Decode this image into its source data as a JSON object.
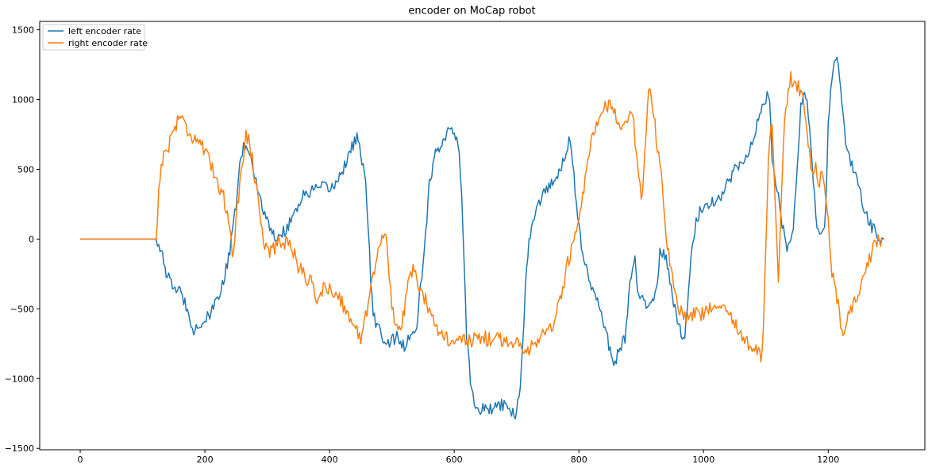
{
  "chart_data": {
    "type": "line",
    "title": "encoder on MoCap robot",
    "xlabel": "",
    "ylabel": "",
    "xlim": [
      -65,
      1355
    ],
    "ylim": [
      -1510,
      1560
    ],
    "xticks": [
      0,
      200,
      400,
      600,
      800,
      1000,
      1200
    ],
    "yticks": [
      -1500,
      -1000,
      -500,
      0,
      500,
      1000,
      1500
    ],
    "xtick_labels": [
      "0",
      "200",
      "400",
      "600",
      "800",
      "1000",
      "1200"
    ],
    "ytick_labels": [
      "−1500",
      "−1000",
      "−500",
      "0",
      "500",
      "1000",
      "1500"
    ],
    "grid": false,
    "legend_position": "upper-left",
    "noise_note_free": true,
    "series": [
      {
        "name": "left encoder rate",
        "color": "#1f77b4",
        "noise": 45,
        "points": [
          [
            0,
            0
          ],
          [
            122,
            0
          ],
          [
            128,
            -50
          ],
          [
            135,
            -200
          ],
          [
            145,
            -320
          ],
          [
            160,
            -380
          ],
          [
            175,
            -520
          ],
          [
            180,
            -650
          ],
          [
            190,
            -630
          ],
          [
            200,
            -580
          ],
          [
            210,
            -540
          ],
          [
            220,
            -420
          ],
          [
            230,
            -300
          ],
          [
            240,
            -100
          ],
          [
            250,
            250
          ],
          [
            255,
            500
          ],
          [
            262,
            650
          ],
          [
            270,
            650
          ],
          [
            280,
            450
          ],
          [
            290,
            280
          ],
          [
            300,
            120
          ],
          [
            310,
            30
          ],
          [
            320,
            20
          ],
          [
            330,
            70
          ],
          [
            340,
            160
          ],
          [
            350,
            250
          ],
          [
            360,
            320
          ],
          [
            370,
            340
          ],
          [
            380,
            360
          ],
          [
            390,
            370
          ],
          [
            400,
            360
          ],
          [
            410,
            400
          ],
          [
            420,
            480
          ],
          [
            430,
            600
          ],
          [
            440,
            700
          ],
          [
            445,
            740
          ],
          [
            450,
            600
          ],
          [
            458,
            400
          ],
          [
            462,
            100
          ],
          [
            466,
            -300
          ],
          [
            470,
            -550
          ],
          [
            480,
            -650
          ],
          [
            490,
            -750
          ],
          [
            500,
            -720
          ],
          [
            510,
            -700
          ],
          [
            520,
            -780
          ],
          [
            530,
            -700
          ],
          [
            538,
            -680
          ],
          [
            545,
            -400
          ],
          [
            552,
            -100
          ],
          [
            560,
            400
          ],
          [
            570,
            600
          ],
          [
            580,
            700
          ],
          [
            590,
            780
          ],
          [
            600,
            760
          ],
          [
            608,
            620
          ],
          [
            612,
            300
          ],
          [
            616,
            -200
          ],
          [
            620,
            -700
          ],
          [
            626,
            -1000
          ],
          [
            632,
            -1180
          ],
          [
            640,
            -1230
          ],
          [
            650,
            -1200
          ],
          [
            660,
            -1230
          ],
          [
            670,
            -1180
          ],
          [
            680,
            -1200
          ],
          [
            700,
            -1250
          ],
          [
            705,
            -1100
          ],
          [
            710,
            -700
          ],
          [
            715,
            -300
          ],
          [
            720,
            0
          ],
          [
            730,
            200
          ],
          [
            740,
            300
          ],
          [
            750,
            380
          ],
          [
            760,
            420
          ],
          [
            770,
            500
          ],
          [
            780,
            650
          ],
          [
            785,
            700
          ],
          [
            790,
            550
          ],
          [
            795,
            300
          ],
          [
            800,
            100
          ],
          [
            805,
            -100
          ],
          [
            815,
            -250
          ],
          [
            825,
            -400
          ],
          [
            835,
            -500
          ],
          [
            845,
            -700
          ],
          [
            855,
            -900
          ],
          [
            865,
            -800
          ],
          [
            875,
            -700
          ],
          [
            880,
            -400
          ],
          [
            885,
            -250
          ],
          [
            890,
            -150
          ],
          [
            895,
            -400
          ],
          [
            900,
            -420
          ],
          [
            905,
            -450
          ],
          [
            910,
            -500
          ],
          [
            915,
            -500
          ],
          [
            920,
            -400
          ],
          [
            925,
            -320
          ],
          [
            930,
            -100
          ],
          [
            940,
            -130
          ],
          [
            950,
            -400
          ],
          [
            955,
            -520
          ],
          [
            960,
            -600
          ],
          [
            965,
            -680
          ],
          [
            970,
            -700
          ],
          [
            975,
            -400
          ],
          [
            980,
            -100
          ],
          [
            985,
            50
          ],
          [
            990,
            150
          ],
          [
            1000,
            250
          ],
          [
            1010,
            260
          ],
          [
            1020,
            280
          ],
          [
            1030,
            320
          ],
          [
            1040,
            420
          ],
          [
            1050,
            500
          ],
          [
            1060,
            540
          ],
          [
            1070,
            620
          ],
          [
            1080,
            700
          ],
          [
            1090,
            900
          ],
          [
            1100,
            1000
          ],
          [
            1105,
            1050
          ],
          [
            1110,
            600
          ],
          [
            1115,
            400
          ],
          [
            1120,
            300
          ],
          [
            1125,
            150
          ],
          [
            1130,
            0
          ],
          [
            1135,
            -70
          ],
          [
            1140,
            -50
          ],
          [
            1145,
            150
          ],
          [
            1150,
            500
          ],
          [
            1155,
            900
          ],
          [
            1160,
            1050
          ],
          [
            1165,
            1000
          ],
          [
            1170,
            800
          ],
          [
            1175,
            500
          ],
          [
            1180,
            150
          ],
          [
            1185,
            50
          ],
          [
            1190,
            50
          ],
          [
            1195,
            100
          ],
          [
            1200,
            800
          ],
          [
            1205,
            1150
          ],
          [
            1210,
            1250
          ],
          [
            1215,
            1300
          ],
          [
            1220,
            1050
          ],
          [
            1225,
            800
          ],
          [
            1230,
            650
          ],
          [
            1240,
            500
          ],
          [
            1250,
            350
          ],
          [
            1260,
            200
          ],
          [
            1270,
            80
          ],
          [
            1280,
            20
          ],
          [
            1290,
            0
          ]
        ]
      },
      {
        "name": "right encoder rate",
        "color": "#ff7f0e",
        "noise": 55,
        "points": [
          [
            0,
            0
          ],
          [
            123,
            0
          ],
          [
            125,
            300
          ],
          [
            130,
            550
          ],
          [
            140,
            650
          ],
          [
            150,
            780
          ],
          [
            160,
            900
          ],
          [
            170,
            800
          ],
          [
            180,
            730
          ],
          [
            190,
            720
          ],
          [
            200,
            620
          ],
          [
            210,
            520
          ],
          [
            220,
            420
          ],
          [
            230,
            300
          ],
          [
            240,
            100
          ],
          [
            245,
            -120
          ],
          [
            250,
            150
          ],
          [
            258,
            450
          ],
          [
            265,
            750
          ],
          [
            272,
            700
          ],
          [
            278,
            500
          ],
          [
            285,
            300
          ],
          [
            290,
            150
          ],
          [
            295,
            -50
          ],
          [
            300,
            -80
          ],
          [
            310,
            -70
          ],
          [
            320,
            -20
          ],
          [
            330,
            -20
          ],
          [
            340,
            -50
          ],
          [
            350,
            -200
          ],
          [
            360,
            -260
          ],
          [
            370,
            -310
          ],
          [
            380,
            -420
          ],
          [
            390,
            -360
          ],
          [
            400,
            -360
          ],
          [
            410,
            -380
          ],
          [
            420,
            -450
          ],
          [
            430,
            -550
          ],
          [
            440,
            -650
          ],
          [
            450,
            -700
          ],
          [
            460,
            -500
          ],
          [
            468,
            -300
          ],
          [
            475,
            -150
          ],
          [
            482,
            0
          ],
          [
            490,
            10
          ],
          [
            495,
            -200
          ],
          [
            500,
            -450
          ],
          [
            505,
            -620
          ],
          [
            515,
            -650
          ],
          [
            520,
            -500
          ],
          [
            530,
            -230
          ],
          [
            535,
            -230
          ],
          [
            545,
            -350
          ],
          [
            555,
            -450
          ],
          [
            565,
            -540
          ],
          [
            575,
            -650
          ],
          [
            590,
            -720
          ],
          [
            600,
            -780
          ],
          [
            610,
            -700
          ],
          [
            620,
            -750
          ],
          [
            640,
            -700
          ],
          [
            660,
            -720
          ],
          [
            680,
            -720
          ],
          [
            700,
            -750
          ],
          [
            720,
            -780
          ],
          [
            740,
            -700
          ],
          [
            760,
            -600
          ],
          [
            770,
            -450
          ],
          [
            780,
            -200
          ],
          [
            790,
            -50
          ],
          [
            800,
            100
          ],
          [
            808,
            350
          ],
          [
            818,
            650
          ],
          [
            828,
            800
          ],
          [
            838,
            920
          ],
          [
            848,
            950
          ],
          [
            858,
            900
          ],
          [
            868,
            820
          ],
          [
            875,
            850
          ],
          [
            885,
            900
          ],
          [
            888,
            800
          ],
          [
            895,
            450
          ],
          [
            900,
            300
          ],
          [
            905,
            500
          ],
          [
            910,
            1000
          ],
          [
            915,
            1100
          ],
          [
            920,
            900
          ],
          [
            925,
            700
          ],
          [
            930,
            550
          ],
          [
            935,
            300
          ],
          [
            940,
            0
          ],
          [
            950,
            -300
          ],
          [
            960,
            -500
          ],
          [
            970,
            -550
          ],
          [
            980,
            -550
          ],
          [
            990,
            -500
          ],
          [
            1000,
            -550
          ],
          [
            1010,
            -500
          ],
          [
            1020,
            -450
          ],
          [
            1030,
            -450
          ],
          [
            1040,
            -500
          ],
          [
            1050,
            -600
          ],
          [
            1060,
            -700
          ],
          [
            1070,
            -750
          ],
          [
            1080,
            -780
          ],
          [
            1090,
            -820
          ],
          [
            1095,
            -850
          ],
          [
            1100,
            0
          ],
          [
            1105,
            700
          ],
          [
            1110,
            850
          ],
          [
            1115,
            300
          ],
          [
            1120,
            -300
          ],
          [
            1125,
            300
          ],
          [
            1130,
            900
          ],
          [
            1140,
            1150
          ],
          [
            1150,
            1100
          ],
          [
            1160,
            1000
          ],
          [
            1170,
            600
          ],
          [
            1175,
            450
          ],
          [
            1180,
            500
          ],
          [
            1185,
            420
          ],
          [
            1190,
            450
          ],
          [
            1195,
            350
          ],
          [
            1200,
            150
          ],
          [
            1205,
            -200
          ],
          [
            1210,
            -350
          ],
          [
            1215,
            -450
          ],
          [
            1220,
            -600
          ],
          [
            1225,
            -660
          ],
          [
            1230,
            -600
          ],
          [
            1240,
            -450
          ],
          [
            1250,
            -350
          ],
          [
            1260,
            -200
          ],
          [
            1270,
            -100
          ],
          [
            1280,
            0
          ],
          [
            1290,
            0
          ]
        ]
      }
    ]
  }
}
